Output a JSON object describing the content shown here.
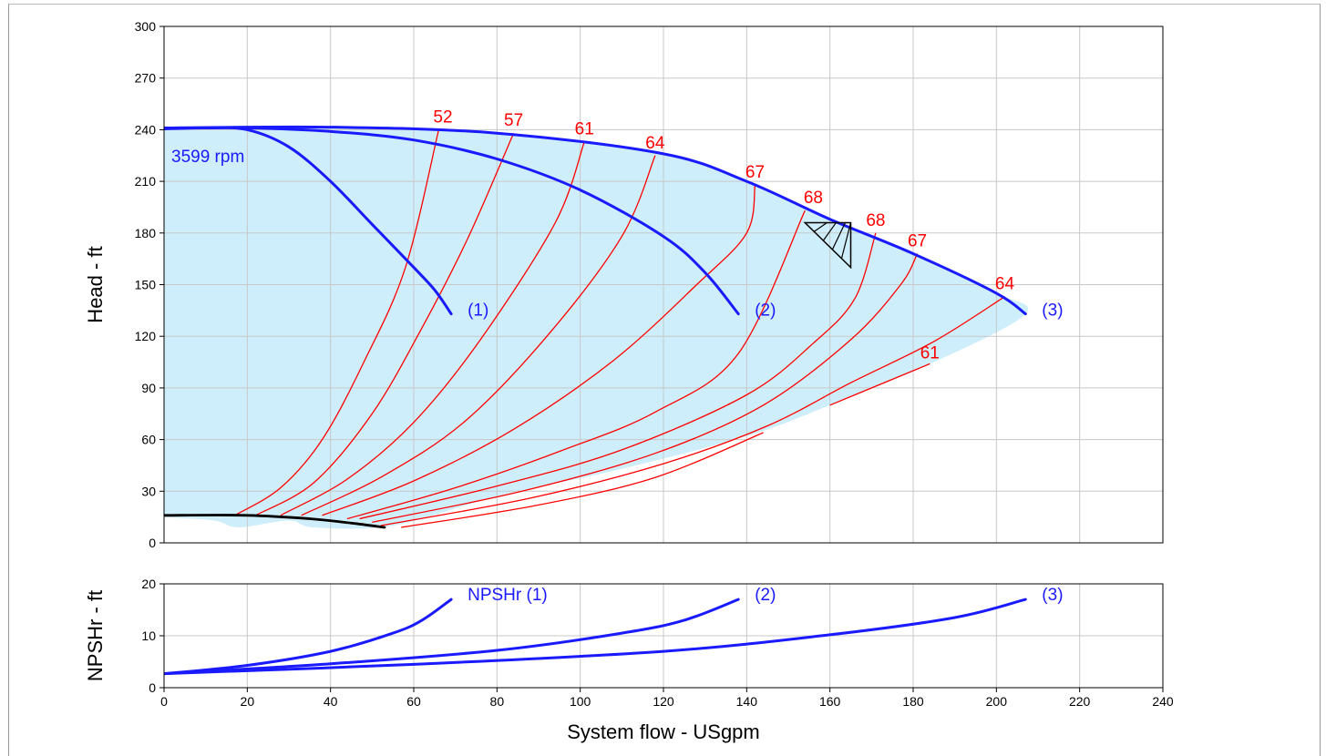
{
  "chart_data": [
    {
      "type": "line",
      "name": "head",
      "ylabel": "Head - ft",
      "xlabel": "",
      "xlim": [
        0,
        240
      ],
      "ylim": [
        0,
        300
      ],
      "x_ticks": [
        0,
        20,
        40,
        60,
        80,
        100,
        120,
        140,
        160,
        180,
        200,
        220,
        240
      ],
      "y_ticks": [
        0,
        30,
        60,
        90,
        120,
        150,
        180,
        210,
        240,
        270,
        300
      ],
      "grid": true,
      "speed_label": "3599 rpm",
      "colors": {
        "head": "#1a1aff",
        "efficiency": "#ff0000",
        "region": "#cdeefa",
        "min_flow": "#000000"
      },
      "series": [
        {
          "name": "(1)",
          "points": [
            [
              0,
              240.5
            ],
            [
              10,
              241
            ],
            [
              20,
              240
            ],
            [
              30,
              230
            ],
            [
              40,
              210
            ],
            [
              50,
              185
            ],
            [
              60,
              160
            ],
            [
              65,
              147
            ],
            [
              69,
              133
            ]
          ]
        },
        {
          "name": "(2)",
          "points": [
            [
              0,
              241
            ],
            [
              20,
              241
            ],
            [
              40,
              239
            ],
            [
              60,
              234
            ],
            [
              80,
              223
            ],
            [
              100,
              205
            ],
            [
              120,
              178
            ],
            [
              130,
              157
            ],
            [
              138,
              133
            ]
          ]
        },
        {
          "name": "(3)",
          "points": [
            [
              0,
              241
            ],
            [
              40,
              241.5
            ],
            [
              80,
              238
            ],
            [
              120,
              226
            ],
            [
              140,
              210
            ],
            [
              160,
              188
            ],
            [
              180,
              168
            ],
            [
              200,
              145
            ],
            [
              207,
              133
            ]
          ]
        },
        {
          "name": "",
          "role": "min-flow",
          "points": [
            [
              0,
              16
            ],
            [
              20,
              16
            ],
            [
              35,
              14
            ],
            [
              45,
              11.5
            ],
            [
              53,
              9
            ]
          ]
        }
      ],
      "efficiency_labels": [
        {
          "label": "52",
          "x": 67,
          "y": 240
        },
        {
          "label": "57",
          "x": 84,
          "y": 238
        },
        {
          "label": "61",
          "x": 101,
          "y": 233
        },
        {
          "label": "64",
          "x": 118,
          "y": 225
        },
        {
          "label": "67",
          "x": 142,
          "y": 208
        },
        {
          "label": "68",
          "x": 156,
          "y": 193
        },
        {
          "label": "68",
          "x": 171,
          "y": 180
        },
        {
          "label": "67",
          "x": 181,
          "y": 168
        },
        {
          "label": "64",
          "x": 202,
          "y": 143
        },
        {
          "label": "61",
          "x": 184,
          "y": 103
        }
      ],
      "efficiency_curves": [
        {
          "label": "52",
          "points": [
            [
              17,
              16
            ],
            [
              28,
              32
            ],
            [
              38,
              60
            ],
            [
              48,
              105
            ],
            [
              58,
              160
            ],
            [
              66,
              240
            ]
          ]
        },
        {
          "label": "57",
          "points": [
            [
              22,
              16
            ],
            [
              36,
              35
            ],
            [
              50,
              75
            ],
            [
              62,
              125
            ],
            [
              73,
              177
            ],
            [
              84,
              238
            ]
          ]
        },
        {
          "label": "61",
          "points": [
            [
              28,
              16
            ],
            [
              44,
              37
            ],
            [
              60,
              70
            ],
            [
              76,
              118
            ],
            [
              94,
              186
            ],
            [
              101,
              233
            ]
          ]
        },
        {
          "label": "64",
          "points": [
            [
              33,
              16
            ],
            [
              52,
              38
            ],
            [
              72,
              70
            ],
            [
              92,
              120
            ],
            [
              110,
              178
            ],
            [
              118,
              225
            ]
          ]
        },
        {
          "label": "67",
          "points": [
            [
              38,
              16
            ],
            [
              60,
              36
            ],
            [
              84,
              66
            ],
            [
              108,
              106
            ],
            [
              128,
              150
            ],
            [
              140,
              180
            ],
            [
              142,
              208
            ]
          ]
        },
        {
          "label": "68a",
          "points": [
            [
              44,
              14
            ],
            [
              70,
              32
            ],
            [
              96,
              54
            ],
            [
              118,
              76
            ],
            [
              138,
              110
            ],
            [
              154,
              193
            ]
          ]
        },
        {
          "label": "68b",
          "points": [
            [
              47,
              14
            ],
            [
              80,
              33
            ],
            [
              110,
              54
            ],
            [
              140,
              86
            ],
            [
              156,
              116
            ],
            [
              166,
              142
            ],
            [
              171,
              180
            ]
          ]
        },
        {
          "label": "67b",
          "points": [
            [
              50,
              12
            ],
            [
              86,
              30
            ],
            [
              118,
              52
            ],
            [
              144,
              80
            ],
            [
              165,
              118
            ],
            [
              177,
              150
            ],
            [
              181,
              168
            ]
          ]
        },
        {
          "label": "64b",
          "points": [
            [
              52,
              10
            ],
            [
              88,
              26
            ],
            [
              120,
              46
            ],
            [
              145,
              68
            ],
            [
              165,
              93
            ],
            [
              185,
              117
            ],
            [
              202,
              143
            ]
          ]
        },
        {
          "label": "61b",
          "points": [
            [
              57,
              9
            ],
            [
              90,
              22
            ],
            [
              118,
              38
            ],
            [
              144,
              64
            ]
          ]
        },
        {
          "label": "61c",
          "points": [
            [
              160,
              80
            ],
            [
              172,
              92
            ],
            [
              184,
              104
            ]
          ]
        }
      ],
      "region": [
        [
          0,
          241
        ],
        [
          40,
          241.5
        ],
        [
          80,
          238
        ],
        [
          120,
          226
        ],
        [
          140,
          210
        ],
        [
          160,
          188
        ],
        [
          180,
          168
        ],
        [
          200,
          145
        ],
        [
          207,
          133
        ],
        [
          185,
          105
        ],
        [
          160,
          80
        ],
        [
          140,
          62
        ],
        [
          110,
          43
        ],
        [
          80,
          27
        ],
        [
          55,
          10
        ],
        [
          36,
          9
        ],
        [
          30,
          13
        ],
        [
          18,
          9
        ],
        [
          12,
          13
        ],
        [
          0,
          15
        ]
      ],
      "bep_marker": {
        "x": [
          154,
          165
        ],
        "y": [
          186,
          160
        ]
      }
    },
    {
      "type": "line",
      "name": "npsh",
      "ylabel": "NPSHr - ft",
      "xlabel": "System flow - USgpm",
      "xlim": [
        0,
        240
      ],
      "ylim": [
        0,
        20
      ],
      "x_ticks": [
        0,
        20,
        40,
        60,
        80,
        100,
        120,
        140,
        160,
        180,
        200,
        220,
        240
      ],
      "y_ticks": [
        0,
        10,
        20
      ],
      "grid": true,
      "series": [
        {
          "name": "NPSHr (1)",
          "points": [
            [
              0,
              2.7
            ],
            [
              20,
              4.3
            ],
            [
              40,
              7
            ],
            [
              55,
              10.5
            ],
            [
              62,
              13
            ],
            [
              69,
              17
            ]
          ]
        },
        {
          "name": "(2)",
          "points": [
            [
              0,
              2.7
            ],
            [
              40,
              4.6
            ],
            [
              80,
              7.2
            ],
            [
              110,
              10.5
            ],
            [
              125,
              13
            ],
            [
              138,
              17
            ]
          ]
        },
        {
          "name": "(3)",
          "points": [
            [
              0,
              2.7
            ],
            [
              60,
              4.5
            ],
            [
              120,
              7
            ],
            [
              160,
              10.2
            ],
            [
              190,
              13.5
            ],
            [
              207,
              17
            ]
          ]
        }
      ]
    }
  ]
}
